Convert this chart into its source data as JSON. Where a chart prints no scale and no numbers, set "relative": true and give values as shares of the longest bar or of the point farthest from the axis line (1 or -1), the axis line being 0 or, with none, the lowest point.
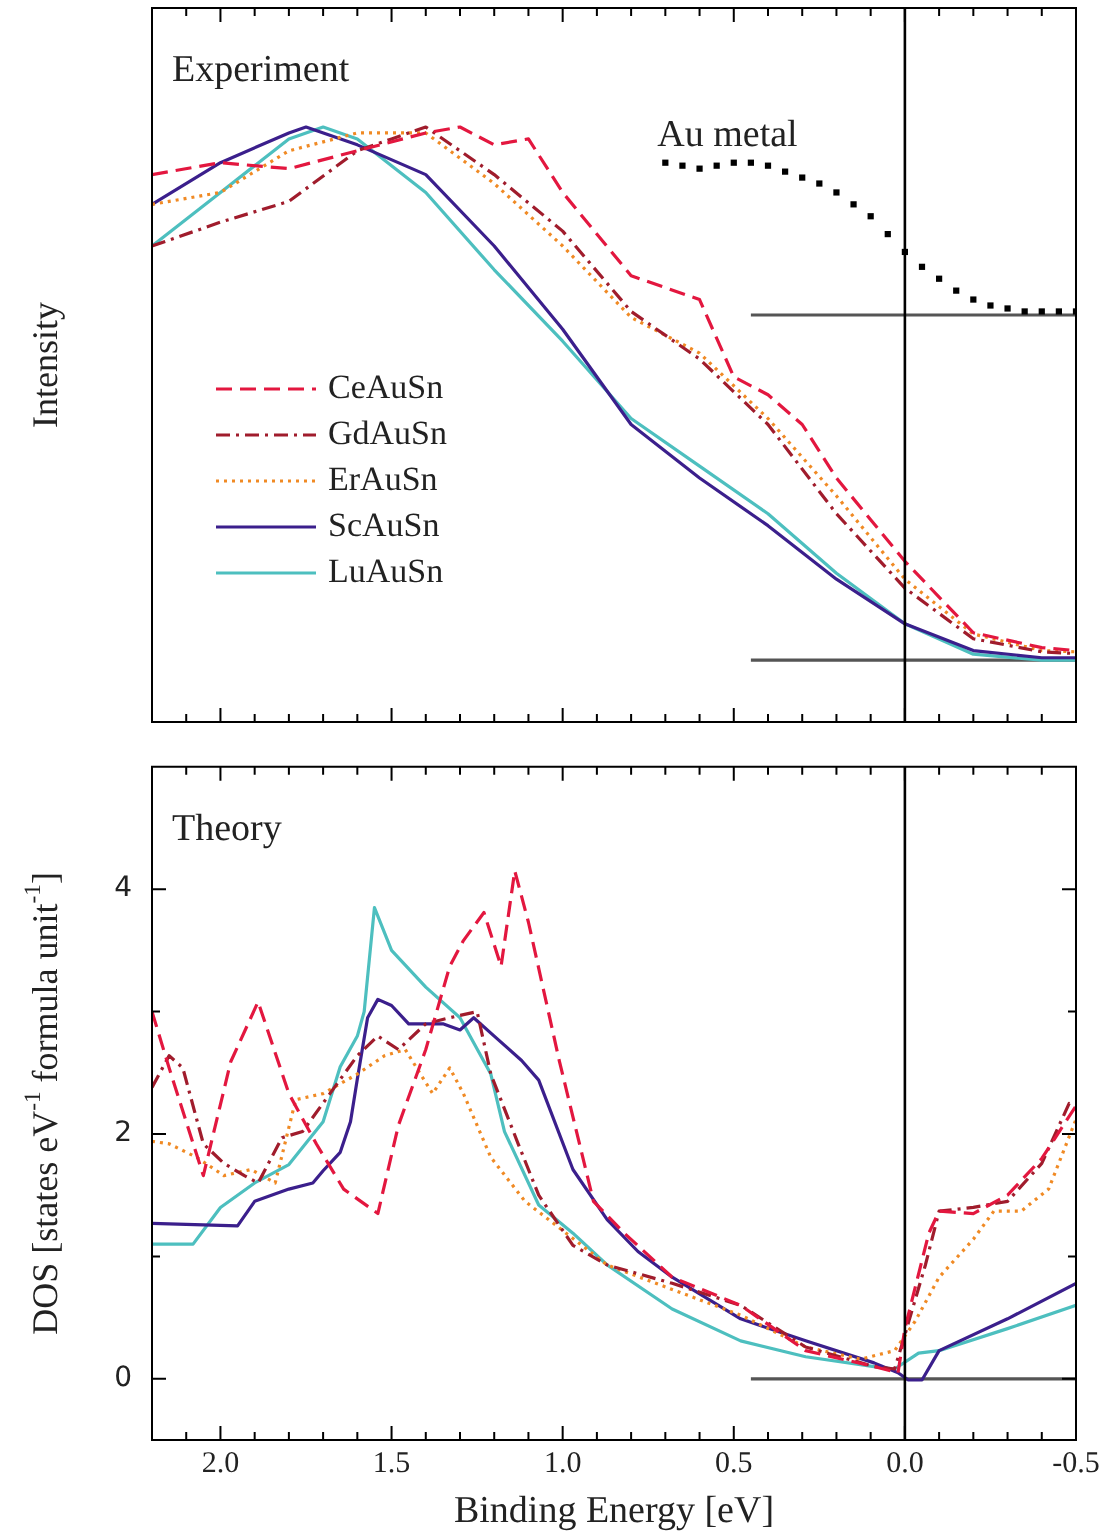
{
  "chart_data": [
    {
      "type": "line",
      "ylabel": "Intensity",
      "relative": true,
      "tick_labels": false,
      "grid": false,
      "marker": "none",
      "legend": "center left",
      "annotations": [
        "Experiment"
      ],
      "xlim": [
        2.2,
        -0.5
      ],
      "xticks": [
        {
          "value": 2.1,
          "label": null
        },
        2,
        {
          "value": 1.9,
          "label": null
        },
        {
          "value": 1.8,
          "label": null
        },
        {
          "value": 1.7,
          "label": null
        },
        {
          "value": 1.6,
          "label": null
        },
        1.5,
        {
          "value": 1.4,
          "label": null
        },
        {
          "value": 1.3,
          "label": null
        },
        {
          "value": 1.2,
          "label": null
        },
        {
          "value": 1.1,
          "label": null
        },
        1,
        {
          "value": 0.9,
          "label": null
        },
        {
          "value": 0.8,
          "label": null
        },
        {
          "value": 0.7,
          "label": null
        },
        {
          "value": 0.6,
          "label": null
        },
        0.5,
        {
          "value": 0.4,
          "label": null
        },
        {
          "value": 0.3,
          "label": null
        },
        {
          "value": 0.2,
          "label": null
        },
        {
          "value": 0.1,
          "label": null
        },
        0,
        {
          "value": -0.1,
          "label": null
        },
        {
          "value": -0.2,
          "label": null
        },
        {
          "value": -0.3,
          "label": null
        },
        {
          "value": -0.4,
          "label": null
        },
        -0.5
      ],
      "ref_lines": [
        {
          "axis": "x",
          "value": 0,
          "color": "#000000"
        }
      ],
      "series": [
        {
          "name": "CeAuSn",
          "color": "#e3173f",
          "line_style": "dashed",
          "x": [
            2.2,
            2.0,
            1.8,
            1.6,
            1.4,
            1.3,
            1.2,
            1.1,
            1.0,
            0.8,
            0.6,
            0.5,
            0.4,
            0.3,
            0.2,
            0.1,
            0.0,
            -0.2,
            -0.4,
            -0.5
          ],
          "values": [
            0.92,
            0.94,
            0.93,
            0.96,
            0.99,
            1.0,
            0.97,
            0.98,
            0.89,
            0.75,
            0.71,
            0.58,
            0.55,
            0.5,
            0.41,
            0.34,
            0.27,
            0.15,
            0.125,
            0.12
          ]
        },
        {
          "name": "GdAuSn",
          "color": "#a01c2c",
          "line_style": "dashdot",
          "x": [
            2.2,
            2.0,
            1.8,
            1.6,
            1.5,
            1.4,
            1.2,
            1.0,
            0.8,
            0.6,
            0.4,
            0.2,
            0.0,
            -0.2,
            -0.4,
            -0.5
          ],
          "values": [
            0.8,
            0.84,
            0.875,
            0.96,
            0.98,
            1.0,
            0.92,
            0.825,
            0.69,
            0.61,
            0.5,
            0.35,
            0.225,
            0.14,
            0.118,
            0.115
          ]
        },
        {
          "name": "ErAuSn",
          "color": "#f08a24",
          "line_style": "dotted",
          "x": [
            2.2,
            2.0,
            1.8,
            1.6,
            1.4,
            1.2,
            1.0,
            0.8,
            0.6,
            0.4,
            0.2,
            0.0,
            -0.2,
            -0.4,
            -0.5
          ],
          "values": [
            0.87,
            0.89,
            0.96,
            0.99,
            0.99,
            0.905,
            0.8,
            0.68,
            0.62,
            0.51,
            0.38,
            0.24,
            0.148,
            0.12,
            0.118
          ]
        },
        {
          "name": "ScAuSn",
          "color": "#3b1f8c",
          "line_style": "solid",
          "x": [
            2.2,
            2.0,
            1.8,
            1.75,
            1.6,
            1.4,
            1.2,
            1.0,
            0.8,
            0.6,
            0.4,
            0.2,
            0.0,
            -0.2,
            -0.4,
            -0.5
          ],
          "values": [
            0.87,
            0.94,
            0.99,
            1.0,
            0.97,
            0.92,
            0.8,
            0.66,
            0.5,
            0.41,
            0.33,
            0.24,
            0.165,
            0.12,
            0.108,
            0.108
          ]
        },
        {
          "name": "LuAuSn",
          "color": "#4dbfbf",
          "line_style": "solid",
          "x": [
            2.2,
            2.0,
            1.8,
            1.7,
            1.6,
            1.4,
            1.2,
            1.0,
            0.8,
            0.6,
            0.4,
            0.2,
            0.0,
            -0.2,
            -0.4,
            -0.5
          ],
          "values": [
            0.8,
            0.89,
            0.98,
            1.0,
            0.98,
            0.89,
            0.76,
            0.64,
            0.51,
            0.43,
            0.35,
            0.25,
            0.165,
            0.114,
            0.104,
            0.104
          ]
        },
        {
          "name": "Au metal",
          "type": "scatter",
          "marker": "square",
          "color": "#000000",
          "x": [
            0.7,
            0.65,
            0.6,
            0.55,
            0.5,
            0.45,
            0.4,
            0.35,
            0.3,
            0.25,
            0.2,
            0.15,
            0.1,
            0.05,
            0.0,
            -0.05,
            -0.1,
            -0.15,
            -0.2,
            -0.25,
            -0.3,
            -0.35,
            -0.4,
            -0.45,
            -0.5
          ],
          "values": [
            0.94,
            0.935,
            0.93,
            0.935,
            0.94,
            0.94,
            0.935,
            0.925,
            0.915,
            0.905,
            0.89,
            0.87,
            0.85,
            0.82,
            0.79,
            0.765,
            0.745,
            0.725,
            0.71,
            0.7,
            0.695,
            0.69,
            0.69,
            0.69,
            0.69
          ]
        },
        {
          "color": "#555555",
          "line_style": "solid",
          "x": [
            0.45,
            -0.5
          ],
          "values": [
            0.104,
            0.104
          ]
        },
        {
          "color": "#555555",
          "line_style": "solid",
          "x": [
            0.45,
            -0.5
          ],
          "values": [
            0.684,
            0.684
          ]
        }
      ]
    },
    {
      "type": "line",
      "xlabel": "Binding Energy [eV]",
      "ylabel": "DOS [states eV$^{-1}$ formula unit$^{-1}$]",
      "grid": false,
      "marker": "none",
      "annotations": [
        "Theory"
      ],
      "xlim": [
        2.2,
        -0.5
      ],
      "xticks": [
        {
          "value": 2.1,
          "label": null
        },
        {
          "value": 2.0,
          "label": "2.0"
        },
        {
          "value": 1.9,
          "label": null
        },
        {
          "value": 1.8,
          "label": null
        },
        {
          "value": 1.7,
          "label": null
        },
        {
          "value": 1.6,
          "label": null
        },
        {
          "value": 1.5,
          "label": "1.5"
        },
        {
          "value": 1.4,
          "label": null
        },
        {
          "value": 1.3,
          "label": null
        },
        {
          "value": 1.2,
          "label": null
        },
        {
          "value": 1.1,
          "label": null
        },
        {
          "value": 1.0,
          "label": "1.0"
        },
        {
          "value": 0.9,
          "label": null
        },
        {
          "value": 0.8,
          "label": null
        },
        {
          "value": 0.7,
          "label": null
        },
        {
          "value": 0.6,
          "label": null
        },
        {
          "value": 0.5,
          "label": "0.5"
        },
        {
          "value": 0.4,
          "label": null
        },
        {
          "value": 0.3,
          "label": null
        },
        {
          "value": 0.2,
          "label": null
        },
        {
          "value": 0.1,
          "label": null
        },
        {
          "value": 0.0,
          "label": "0.0"
        },
        {
          "value": -0.1,
          "label": null
        },
        {
          "value": -0.2,
          "label": null
        },
        {
          "value": -0.3,
          "label": null
        },
        {
          "value": -0.4,
          "label": null
        },
        {
          "value": -0.5,
          "label": "-0.5"
        }
      ],
      "ylim": [
        -0.5,
        5
      ],
      "yticks": [
        0,
        {
          "value": 1,
          "label": null
        },
        2,
        {
          "value": 3,
          "label": null
        },
        4
      ],
      "ref_lines": [
        {
          "axis": "x",
          "value": 0,
          "color": "#000000"
        }
      ],
      "series": [
        {
          "color": "#e3173f",
          "line_style": "dashed",
          "x": [
            2.2,
            2.15,
            2.05,
            1.97,
            1.89,
            1.8,
            1.72,
            1.64,
            1.54,
            1.48,
            1.4,
            1.33,
            1.29,
            1.23,
            1.18,
            1.14,
            1.1,
            1.01,
            0.91,
            0.82,
            0.68,
            0.48,
            0.29,
            0.09,
            0.02,
            0.0,
            -0.07,
            -0.1,
            -0.2,
            -0.3,
            -0.4,
            -0.5
          ],
          "values": [
            3.0,
            2.54,
            1.66,
            2.59,
            3.08,
            2.33,
            1.92,
            1.55,
            1.35,
            2.07,
            2.69,
            3.37,
            3.58,
            3.81,
            3.37,
            4.15,
            3.73,
            2.6,
            1.45,
            1.19,
            0.83,
            0.6,
            0.23,
            0.1,
            0.05,
            0.41,
            1.19,
            1.37,
            1.35,
            1.5,
            1.8,
            2.23
          ]
        },
        {
          "color": "#a01c2c",
          "line_style": "dashdot",
          "x": [
            2.2,
            2.15,
            2.11,
            2.05,
            1.99,
            1.93,
            1.89,
            1.82,
            1.76,
            1.68,
            1.6,
            1.54,
            1.48,
            1.4,
            1.33,
            1.25,
            1.21,
            1.13,
            1.07,
            0.97,
            0.87,
            0.68,
            0.48,
            0.29,
            0.09,
            0.03,
            0.0,
            -0.06,
            -0.1,
            -0.2,
            -0.3,
            -0.4,
            -0.48,
            -0.5
          ],
          "values": [
            2.38,
            2.64,
            2.54,
            1.92,
            1.76,
            1.66,
            1.6,
            1.97,
            2.02,
            2.33,
            2.64,
            2.8,
            2.69,
            2.9,
            2.95,
            3.0,
            2.49,
            1.92,
            1.5,
            1.09,
            0.93,
            0.78,
            0.6,
            0.26,
            0.1,
            0.08,
            0.36,
            0.93,
            1.37,
            1.4,
            1.45,
            1.76,
            2.25,
            2.23
          ]
        },
        {
          "color": "#f08a24",
          "line_style": "dotted",
          "x": [
            2.2,
            2.15,
            2.07,
            1.99,
            1.91,
            1.84,
            1.78,
            1.7,
            1.6,
            1.52,
            1.46,
            1.38,
            1.33,
            1.29,
            1.21,
            1.11,
            0.99,
            0.87,
            0.68,
            0.48,
            0.29,
            0.13,
            0.03,
            -0.03,
            -0.1,
            -0.2,
            -0.26,
            -0.34,
            -0.42,
            -0.5
          ],
          "values": [
            1.94,
            1.92,
            1.81,
            1.66,
            1.71,
            1.6,
            2.28,
            2.33,
            2.49,
            2.64,
            2.69,
            2.33,
            2.54,
            2.33,
            1.81,
            1.45,
            1.19,
            0.93,
            0.73,
            0.52,
            0.26,
            0.16,
            0.23,
            0.47,
            0.83,
            1.14,
            1.37,
            1.37,
            1.55,
            2.12
          ]
        },
        {
          "color": "#3b1f8c",
          "line_style": "solid",
          "x": [
            2.2,
            1.95,
            1.9,
            1.8,
            1.73,
            1.7,
            1.65,
            1.62,
            1.6,
            1.57,
            1.54,
            1.5,
            1.45,
            1.35,
            1.3,
            1.26,
            1.2,
            1.12,
            1.07,
            0.97,
            0.87,
            0.78,
            0.68,
            0.48,
            0.29,
            0.09,
            0.02,
            -0.01,
            -0.05,
            -0.1,
            -0.3,
            -0.5
          ],
          "values": [
            1.27,
            1.25,
            1.45,
            1.55,
            1.6,
            1.7,
            1.85,
            2.1,
            2.45,
            2.95,
            3.1,
            3.05,
            2.9,
            2.9,
            2.85,
            2.95,
            2.8,
            2.6,
            2.44,
            1.71,
            1.3,
            1.04,
            0.83,
            0.49,
            0.31,
            0.13,
            0.05,
            -0.01,
            -0.01,
            0.23,
            0.49,
            0.78
          ]
        },
        {
          "color": "#4dbfbf",
          "line_style": "solid",
          "x": [
            2.2,
            2.08,
            2.0,
            1.9,
            1.8,
            1.7,
            1.65,
            1.6,
            1.58,
            1.55,
            1.5,
            1.4,
            1.3,
            1.21,
            1.17,
            1.07,
            0.97,
            0.87,
            0.68,
            0.48,
            0.29,
            0.09,
            0.03,
            -0.04,
            -0.1,
            -0.3,
            -0.5
          ],
          "values": [
            1.1,
            1.1,
            1.4,
            1.6,
            1.75,
            2.1,
            2.55,
            2.8,
            3.0,
            3.85,
            3.5,
            3.2,
            2.95,
            2.49,
            2.02,
            1.42,
            1.19,
            0.93,
            0.57,
            0.31,
            0.18,
            0.1,
            0.08,
            0.21,
            0.23,
            0.41,
            0.6
          ]
        },
        {
          "color": "#555555",
          "line_style": "solid",
          "x": [
            0.45,
            -0.5
          ],
          "values": [
            0,
            0
          ]
        }
      ]
    }
  ]
}
